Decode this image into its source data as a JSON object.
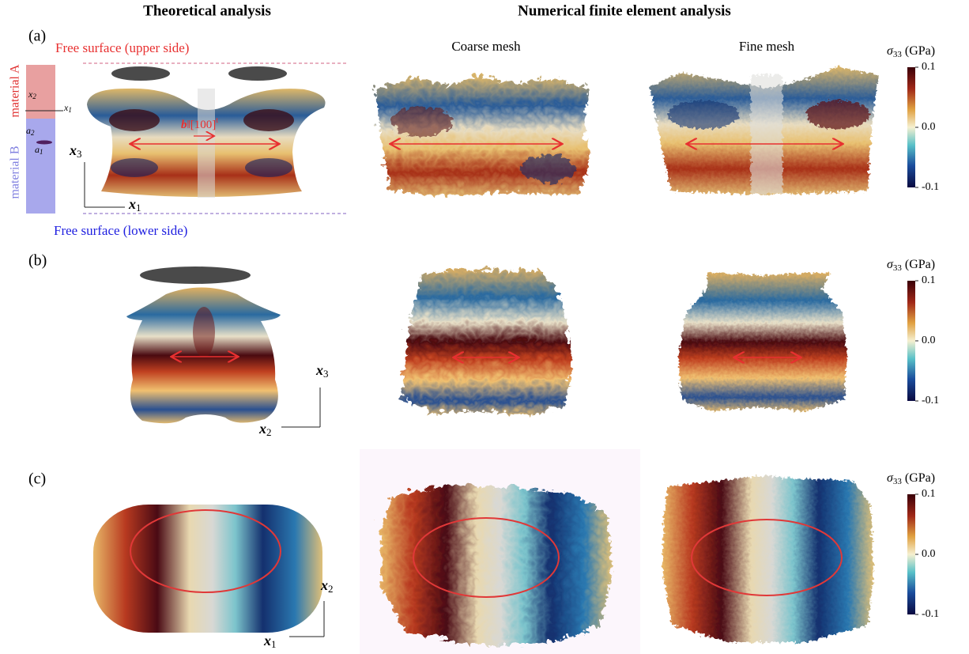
{
  "headers": {
    "theory": "Theoretical analysis",
    "numerical": "Numerical finite element analysis"
  },
  "columns": {
    "coarse": "Coarse mesh",
    "fine": "Fine mesh"
  },
  "panels": [
    {
      "label": "(a)",
      "annotations": {
        "upper_surface": "Free surface (upper side)",
        "lower_surface": "Free surface (lower side)",
        "material_a": "material A",
        "material_b": "material B",
        "inset_axes": [
          {
            "base": "x",
            "sub": "2"
          },
          {
            "base": "x",
            "sub": "1"
          }
        ],
        "loop_axes": [
          {
            "base": "a",
            "sub": "2"
          },
          {
            "base": "a",
            "sub": "1"
          }
        ],
        "burgers": {
          "vector": "b",
          "direction": "‖[100]",
          "sup": "t"
        }
      },
      "axes": [
        {
          "base": "x",
          "sub": "3"
        },
        {
          "base": "x",
          "sub": "1"
        }
      ],
      "colorbar": {
        "symbol": "σ",
        "sub": "33",
        "unit": " (GPa)",
        "ticks": [
          "0.1",
          "0.0",
          "-0.1"
        ]
      }
    },
    {
      "label": "(b)",
      "axes": [
        {
          "base": "x",
          "sub": "3"
        },
        {
          "base": "x",
          "sub": "2"
        }
      ],
      "colorbar": {
        "symbol": "σ",
        "sub": "33",
        "unit": " (GPa)",
        "ticks": [
          "0.1",
          "0.0",
          "-0.1"
        ]
      }
    },
    {
      "label": "(c)",
      "axes": [
        {
          "base": "x",
          "sub": "2"
        },
        {
          "base": "x",
          "sub": "1"
        }
      ],
      "colorbar": {
        "symbol": "σ",
        "sub": "33",
        "unit": " (GPa)",
        "ticks": [
          "0.1",
          "0.0",
          "-0.1"
        ]
      }
    }
  ]
}
